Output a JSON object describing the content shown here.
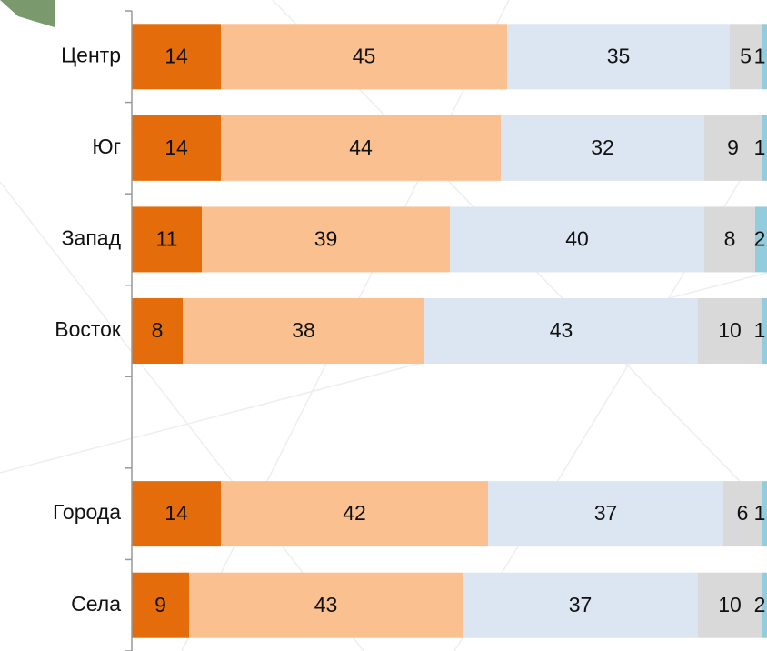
{
  "chart_data": {
    "type": "stacked-barh",
    "categories": [
      "Центр",
      "Юг",
      "Запад",
      "Восток",
      null,
      "Города",
      "Села"
    ],
    "series": [
      {
        "color": "#e46c0a",
        "values": [
          14,
          14,
          11,
          8,
          null,
          14,
          9
        ]
      },
      {
        "color": "#fac090",
        "values": [
          45,
          44,
          39,
          38,
          null,
          42,
          43
        ]
      },
      {
        "color": "#dce6f2",
        "values": [
          35,
          32,
          40,
          43,
          null,
          37,
          37
        ]
      },
      {
        "color": "#d9d9d9",
        "values": [
          5,
          9,
          8,
          10,
          null,
          6,
          10
        ]
      },
      {
        "color": "#93cddd",
        "values": [
          1,
          1,
          2,
          1,
          null,
          1,
          2
        ]
      }
    ],
    "xlim": [
      0,
      100
    ]
  }
}
